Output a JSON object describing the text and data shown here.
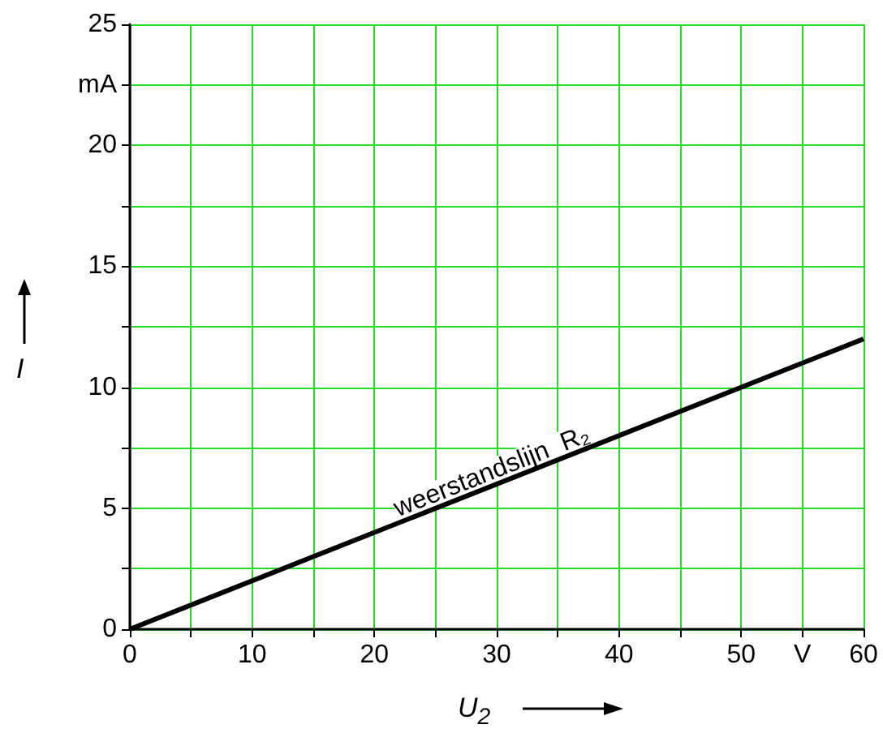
{
  "chart_data": {
    "type": "line",
    "xlabel": "U$_{2}$",
    "ylabel": "I",
    "x": [
      0,
      60
    ],
    "series": [
      {
        "color": "#000000",
        "values": [
          0,
          12
        ]
      }
    ],
    "xlim": [
      0,
      60
    ],
    "ylim": [
      0,
      25
    ],
    "xticks": [
      0,
      {
        "value": 5,
        "label": null
      },
      10,
      {
        "value": 15,
        "label": null
      },
      20,
      {
        "value": 25,
        "label": null
      },
      30,
      {
        "value": 35,
        "label": null
      },
      40,
      {
        "value": 45,
        "label": null
      },
      50,
      {
        "value": 55,
        "label": "V"
      },
      60
    ],
    "yticks": [
      0,
      {
        "value": 2.5,
        "label": null
      },
      5,
      {
        "value": 7.5,
        "label": null
      },
      10,
      {
        "value": 12.5,
        "label": null
      },
      15,
      {
        "value": 17.5,
        "label": null
      },
      20,
      {
        "value": 22.5,
        "label": "mA"
      },
      25
    ],
    "grid": true,
    "marker": "none",
    "line_style": "solid",
    "annotations": [
      {
        "text": "weerstandslijn  R₂",
        "x": 30,
        "y": 6
      }
    ]
  }
}
